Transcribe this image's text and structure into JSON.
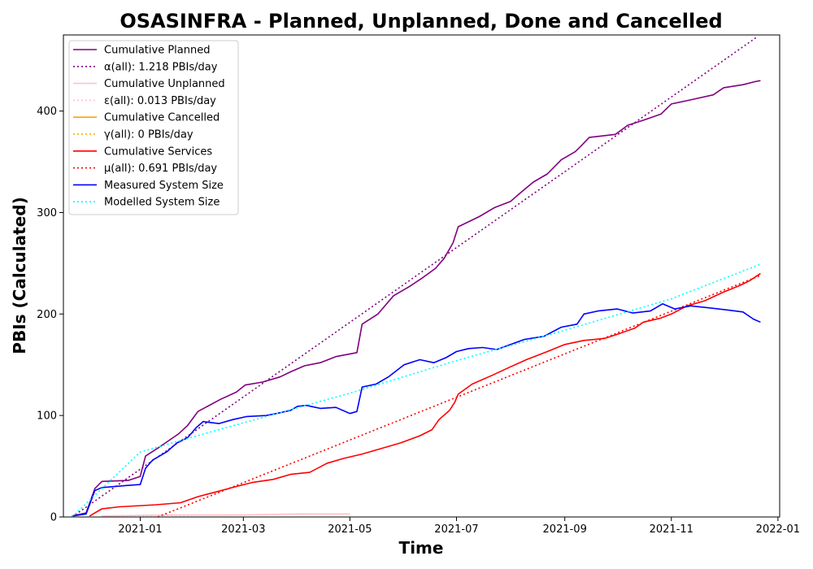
{
  "chart_data": {
    "type": "line",
    "title": "OSASINFRA - Planned, Unplanned, Done  and Cancelled",
    "xlabel": "Time",
    "ylabel": "PBIs (Calculated)",
    "xlim": [
      "2020-11-18",
      "2022-01-02"
    ],
    "ylim": [
      0,
      475
    ],
    "x_ticks": [
      "2021-01",
      "2021-03",
      "2021-05",
      "2021-07",
      "2021-09",
      "2021-11",
      "2022-01"
    ],
    "y_ticks": [
      0,
      100,
      200,
      300,
      400
    ],
    "grid": false,
    "legend_position": "top-left",
    "series": [
      {
        "name": "Cumulative Planned",
        "color": "#800080",
        "style": "solid",
        "points": [
          [
            "2020-11-23",
            1
          ],
          [
            "2020-12-01",
            4
          ],
          [
            "2020-12-06",
            28
          ],
          [
            "2020-12-10",
            35
          ],
          [
            "2020-12-25",
            36
          ],
          [
            "2021-01-01",
            40
          ],
          [
            "2021-01-04",
            60
          ],
          [
            "2021-01-12",
            69
          ],
          [
            "2021-01-23",
            82
          ],
          [
            "2021-01-28",
            90
          ],
          [
            "2021-02-03",
            104
          ],
          [
            "2021-02-16",
            116
          ],
          [
            "2021-02-25",
            123
          ],
          [
            "2021-03-02",
            130
          ],
          [
            "2021-03-12",
            133
          ],
          [
            "2021-03-22",
            138
          ],
          [
            "2021-03-28",
            143
          ],
          [
            "2021-04-05",
            149
          ],
          [
            "2021-04-14",
            152
          ],
          [
            "2021-04-23",
            158
          ],
          [
            "2021-05-05",
            162
          ],
          [
            "2021-05-08",
            190
          ],
          [
            "2021-05-17",
            200
          ],
          [
            "2021-05-26",
            218
          ],
          [
            "2021-06-04",
            227
          ],
          [
            "2021-06-11",
            235
          ],
          [
            "2021-06-19",
            245
          ],
          [
            "2021-06-24",
            255
          ],
          [
            "2021-06-29",
            270
          ],
          [
            "2021-07-02",
            286
          ],
          [
            "2021-07-14",
            296
          ],
          [
            "2021-07-23",
            305
          ],
          [
            "2021-08-01",
            311
          ],
          [
            "2021-08-07",
            320
          ],
          [
            "2021-08-14",
            330
          ],
          [
            "2021-08-22",
            338
          ],
          [
            "2021-08-30",
            352
          ],
          [
            "2021-09-07",
            360
          ],
          [
            "2021-09-10",
            365
          ],
          [
            "2021-09-15",
            374
          ],
          [
            "2021-09-30",
            377
          ],
          [
            "2021-10-07",
            386
          ],
          [
            "2021-10-16",
            391
          ],
          [
            "2021-10-26",
            397
          ],
          [
            "2021-11-01",
            407
          ],
          [
            "2021-11-12",
            411
          ],
          [
            "2021-11-25",
            416
          ],
          [
            "2021-12-01",
            423
          ],
          [
            "2021-12-12",
            426
          ],
          [
            "2021-12-19",
            429
          ],
          [
            "2021-12-22",
            430
          ]
        ]
      },
      {
        "name": "α(all): 1.218 PBIs/day",
        "color": "#800080",
        "style": "dotted",
        "points": [
          [
            "2020-11-23",
            0
          ],
          [
            "2021-12-20",
            473
          ]
        ]
      },
      {
        "name": "Cumulative Unplanned",
        "color": "#ffc0cb",
        "style": "solid",
        "points": [
          [
            "2020-12-10",
            1
          ],
          [
            "2021-01-15",
            2
          ],
          [
            "2021-03-01",
            2
          ],
          [
            "2021-04-01",
            3
          ],
          [
            "2021-05-01",
            3
          ]
        ]
      },
      {
        "name": "ε(all): 0.013 PBIs/day",
        "color": "#ffc0cb",
        "style": "dotted",
        "points": [
          [
            "2020-12-10",
            1
          ],
          [
            "2021-05-01",
            3
          ]
        ]
      },
      {
        "name": "Cumulative Cancelled",
        "color": "#ffa500",
        "style": "solid",
        "points": []
      },
      {
        "name": "γ(all): 0 PBIs/day",
        "color": "#ffa500",
        "style": "dotted",
        "points": []
      },
      {
        "name": "Cumulative Services",
        "color": "#ff0000",
        "style": "solid",
        "points": [
          [
            "2020-12-03",
            1
          ],
          [
            "2020-12-10",
            8
          ],
          [
            "2020-12-20",
            10
          ],
          [
            "2021-01-10",
            12
          ],
          [
            "2021-01-24",
            14
          ],
          [
            "2021-02-03",
            20
          ],
          [
            "2021-02-14",
            25
          ],
          [
            "2021-02-25",
            30
          ],
          [
            "2021-03-06",
            34
          ],
          [
            "2021-03-18",
            37
          ],
          [
            "2021-03-28",
            42
          ],
          [
            "2021-04-08",
            44
          ],
          [
            "2021-04-18",
            53
          ],
          [
            "2021-04-28",
            58
          ],
          [
            "2021-05-08",
            62
          ],
          [
            "2021-05-20",
            68
          ],
          [
            "2021-05-30",
            73
          ],
          [
            "2021-06-10",
            80
          ],
          [
            "2021-06-17",
            86
          ],
          [
            "2021-06-21",
            96
          ],
          [
            "2021-06-27",
            105
          ],
          [
            "2021-06-30",
            113
          ],
          [
            "2021-07-02",
            121
          ],
          [
            "2021-07-10",
            131
          ],
          [
            "2021-07-22",
            140
          ],
          [
            "2021-08-01",
            148
          ],
          [
            "2021-08-10",
            155
          ],
          [
            "2021-08-22",
            163
          ],
          [
            "2021-09-01",
            170
          ],
          [
            "2021-09-12",
            174
          ],
          [
            "2021-09-24",
            176
          ],
          [
            "2021-10-01",
            180
          ],
          [
            "2021-10-11",
            186
          ],
          [
            "2021-10-16",
            192
          ],
          [
            "2021-10-26",
            196
          ],
          [
            "2021-11-01",
            200
          ],
          [
            "2021-11-10",
            208
          ],
          [
            "2021-11-20",
            213
          ],
          [
            "2021-11-30",
            221
          ],
          [
            "2021-12-10",
            228
          ],
          [
            "2021-12-16",
            233
          ],
          [
            "2021-12-22",
            240
          ]
        ]
      },
      {
        "name": "μ(all): 0.691 PBIs/day",
        "color": "#ff0000",
        "style": "dotted",
        "points": [
          [
            "2021-01-11",
            0
          ],
          [
            "2021-12-22",
            238
          ]
        ]
      },
      {
        "name": "Measured System Size",
        "color": "#0000ff",
        "style": "solid",
        "points": [
          [
            "2020-11-23",
            1
          ],
          [
            "2020-12-01",
            3
          ],
          [
            "2020-12-06",
            26
          ],
          [
            "2020-12-10",
            29
          ],
          [
            "2020-12-24",
            31
          ],
          [
            "2021-01-01",
            32
          ],
          [
            "2021-01-04",
            48
          ],
          [
            "2021-01-08",
            56
          ],
          [
            "2021-01-16",
            64
          ],
          [
            "2021-01-22",
            73
          ],
          [
            "2021-01-28",
            78
          ],
          [
            "2021-02-02",
            88
          ],
          [
            "2021-02-06",
            94
          ],
          [
            "2021-02-15",
            92
          ],
          [
            "2021-02-23",
            96
          ],
          [
            "2021-03-03",
            99
          ],
          [
            "2021-03-14",
            100
          ],
          [
            "2021-03-20",
            102
          ],
          [
            "2021-03-28",
            105
          ],
          [
            "2021-04-01",
            109
          ],
          [
            "2021-04-06",
            110
          ],
          [
            "2021-04-14",
            107
          ],
          [
            "2021-04-23",
            108
          ],
          [
            "2021-05-01",
            102
          ],
          [
            "2021-05-05",
            104
          ],
          [
            "2021-05-08",
            128
          ],
          [
            "2021-05-16",
            131
          ],
          [
            "2021-05-23",
            138
          ],
          [
            "2021-06-01",
            150
          ],
          [
            "2021-06-10",
            155
          ],
          [
            "2021-06-18",
            152
          ],
          [
            "2021-06-25",
            157
          ],
          [
            "2021-07-01",
            163
          ],
          [
            "2021-07-08",
            166
          ],
          [
            "2021-07-16",
            167
          ],
          [
            "2021-07-24",
            165
          ],
          [
            "2021-08-01",
            170
          ],
          [
            "2021-08-09",
            175
          ],
          [
            "2021-08-20",
            178
          ],
          [
            "2021-08-30",
            187
          ],
          [
            "2021-09-08",
            190
          ],
          [
            "2021-09-12",
            200
          ],
          [
            "2021-09-20",
            203
          ],
          [
            "2021-10-01",
            205
          ],
          [
            "2021-10-10",
            201
          ],
          [
            "2021-10-20",
            203
          ],
          [
            "2021-10-27",
            210
          ],
          [
            "2021-11-03",
            205
          ],
          [
            "2021-11-12",
            208
          ],
          [
            "2021-11-23",
            206
          ],
          [
            "2021-12-03",
            204
          ],
          [
            "2021-12-12",
            202
          ],
          [
            "2021-12-18",
            195
          ],
          [
            "2021-12-22",
            192
          ]
        ]
      },
      {
        "name": "Modelled System Size",
        "color": "#00ffff",
        "style": "dotted",
        "points": [
          [
            "2020-11-23",
            0
          ],
          [
            "2021-01-01",
            64
          ],
          [
            "2021-02-15",
            86
          ],
          [
            "2021-05-01",
            122
          ],
          [
            "2021-07-01",
            154
          ],
          [
            "2021-09-01",
            184
          ],
          [
            "2021-11-01",
            215
          ],
          [
            "2021-12-22",
            249
          ]
        ]
      }
    ]
  }
}
